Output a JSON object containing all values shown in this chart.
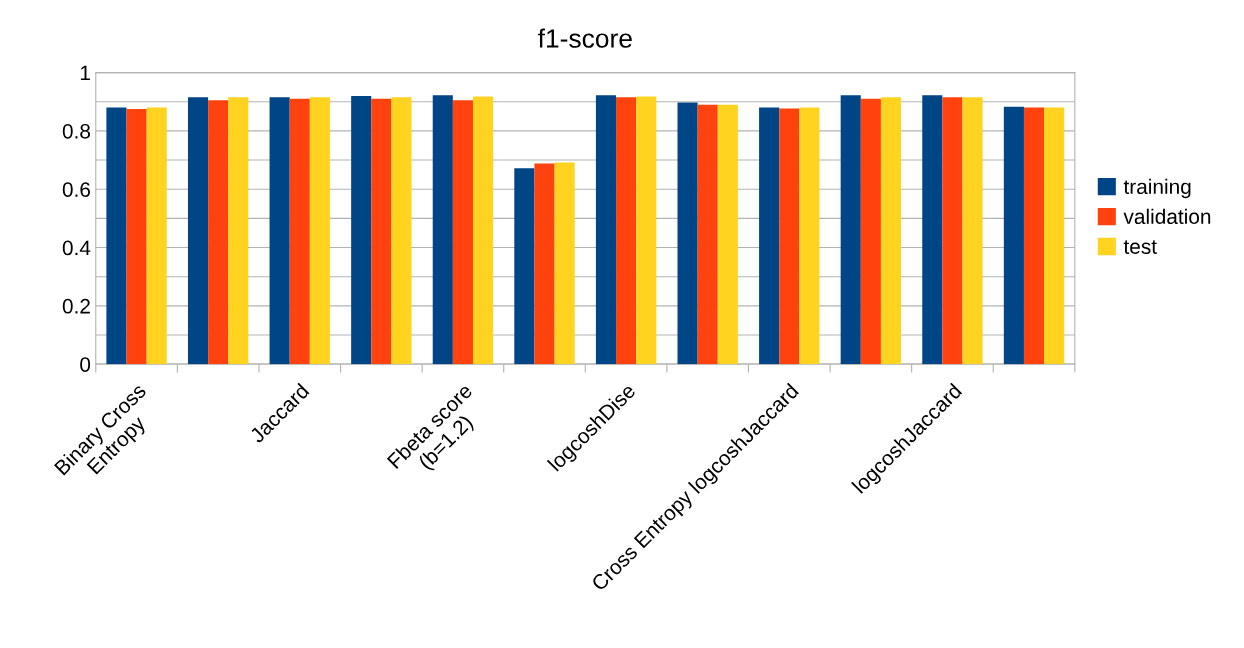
{
  "chart_data": {
    "type": "bar",
    "title": "f1-score",
    "categories": [
      "Binary Cross\nEntropy",
      null,
      "Jaccard",
      null,
      "Fbeta score\n(b=1.2)",
      null,
      "logcoshDise",
      null,
      "Cross Entropy logcoshJaccard",
      null,
      "logcoshJaccard",
      null
    ],
    "series": [
      {
        "name": "training",
        "color": "#004586",
        "values": [
          0.88,
          0.915,
          0.915,
          0.92,
          0.922,
          0.672,
          0.922,
          0.897,
          0.88,
          0.922,
          0.922,
          0.883
        ]
      },
      {
        "name": "validation",
        "color": "#ff420e",
        "values": [
          0.875,
          0.905,
          0.91,
          0.91,
          0.905,
          0.688,
          0.915,
          0.89,
          0.877,
          0.91,
          0.915,
          0.88
        ]
      },
      {
        "name": "test",
        "color": "#ffd320",
        "values": [
          0.88,
          0.915,
          0.915,
          0.915,
          0.918,
          0.692,
          0.918,
          0.89,
          0.88,
          0.915,
          0.915,
          0.88
        ]
      }
    ],
    "ylim": [
      0,
      1
    ],
    "yticks": [
      0,
      {
        "value": 0.1,
        "label": null
      },
      0.2,
      {
        "value": 0.3,
        "label": null
      },
      0.4,
      {
        "value": 0.5,
        "label": null
      },
      0.6,
      {
        "value": 0.7,
        "label": null
      },
      0.8,
      {
        "value": 0.9,
        "label": null
      },
      1
    ],
    "grid": "y",
    "legend": "right"
  }
}
